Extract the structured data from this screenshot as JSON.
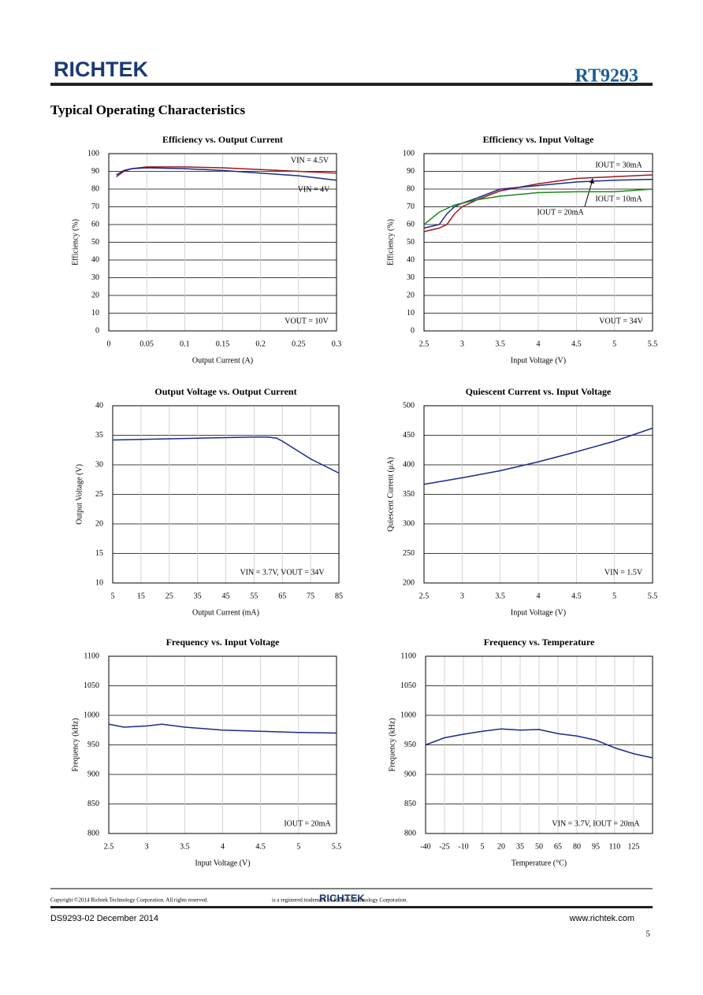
{
  "header": {
    "logo": "RICHTEK",
    "part": "RT9293",
    "section": "Typical Operating Characteristics"
  },
  "chart_data": [
    {
      "type": "line",
      "title": "Efficiency vs. Output Current",
      "x_label": "Output Current (A)",
      "y_label": "Efficiency (%)",
      "x": [
        0.01,
        0.02,
        0.03,
        0.05,
        0.1,
        0.15,
        0.2,
        0.25,
        0.3
      ],
      "series": [
        {
          "name": "VIN = 4.5V",
          "color": "#a01818",
          "values": [
            87,
            90,
            91.5,
            92.5,
            92.5,
            92,
            91,
            90,
            89
          ]
        },
        {
          "name": "VIN = 4V",
          "color": "#1a2a8c",
          "values": [
            88,
            90.5,
            91.5,
            92,
            91.5,
            90.5,
            89,
            87.5,
            85
          ]
        }
      ],
      "annotation": "VOUT = 10V",
      "xlim": [
        0,
        0.3
      ],
      "xticks": [
        0,
        0.05,
        0.1,
        0.15,
        0.2,
        0.25,
        0.3
      ],
      "ylim": [
        0,
        100
      ],
      "yticks": [
        0,
        10,
        20,
        30,
        40,
        50,
        60,
        70,
        80,
        90,
        100
      ],
      "grid": true
    },
    {
      "type": "line",
      "title": "Efficiency vs. Input Voltage",
      "x_label": "Input Voltage (V)",
      "y_label": "Efficiency (%)",
      "x": [
        2.5,
        2.7,
        2.8,
        2.9,
        3.0,
        3.2,
        3.5,
        4,
        4.5,
        5,
        5.5
      ],
      "series": [
        {
          "name": "IOUT = 30mA",
          "color": "#a01818",
          "values": [
            56,
            58,
            60,
            66,
            70,
            74,
            79,
            83,
            86,
            87,
            88
          ]
        },
        {
          "name": "IOUT = 10mA",
          "color": "#1a2a8c",
          "values": [
            58,
            60,
            66,
            70,
            72,
            75,
            80,
            82,
            84,
            85,
            85.5
          ]
        },
        {
          "name": "IOUT = 20mA",
          "color": "#1a8a1a",
          "values": [
            60,
            67,
            69,
            71,
            72,
            74,
            76,
            78,
            78.5,
            78.5,
            80
          ]
        }
      ],
      "annotation": "VOUT = 34V",
      "xlim": [
        2.5,
        5.5
      ],
      "xticks": [
        2.5,
        3,
        3.5,
        4,
        4.5,
        5,
        5.5
      ],
      "ylim": [
        0,
        100
      ],
      "yticks": [
        0,
        10,
        20,
        30,
        40,
        50,
        60,
        70,
        80,
        90,
        100
      ],
      "grid": true
    },
    {
      "type": "line",
      "title": "Output Voltage vs. Output Current",
      "x_label": "Output Current (mA)",
      "y_label": "Output Voltage (V)",
      "x": [
        5,
        15,
        25,
        35,
        45,
        55,
        60,
        63,
        65,
        70,
        75,
        80,
        85
      ],
      "values": [
        34.2,
        34.3,
        34.4,
        34.5,
        34.6,
        34.7,
        34.7,
        34.5,
        34,
        32.5,
        31,
        29.8,
        28.6
      ],
      "color": "#1a2a8c",
      "annotation": "VIN = 3.7V, VOUT = 34V",
      "xlim": [
        5,
        85
      ],
      "xticks": [
        5,
        15,
        25,
        35,
        45,
        55,
        65,
        75,
        85
      ],
      "ylim": [
        10,
        40
      ],
      "yticks": [
        10,
        15,
        20,
        25,
        30,
        35,
        40
      ],
      "grid": true
    },
    {
      "type": "line",
      "title": "Quiescent Current vs. Input Voltage",
      "x_label": "Input Voltage (V)",
      "y_label": "Quiescent Current (μA)",
      "x": [
        2.5,
        3,
        3.5,
        4,
        4.5,
        5,
        5.5
      ],
      "values": [
        367,
        378,
        390,
        405,
        422,
        440,
        462
      ],
      "color": "#1a2a8c",
      "annotation": "VIN = 1.5V",
      "xlim": [
        2.5,
        5.5
      ],
      "xticks": [
        2.5,
        3,
        3.5,
        4,
        4.5,
        5,
        5.5
      ],
      "ylim": [
        200,
        500
      ],
      "yticks": [
        200,
        250,
        300,
        350,
        400,
        450,
        500
      ],
      "grid": true
    },
    {
      "type": "line",
      "title": "Frequency vs. Input Voltage",
      "x_label": "Input Voltage (V)",
      "y_label": "Frequency (kHz)",
      "x": [
        2.5,
        2.7,
        3,
        3.2,
        3.5,
        4,
        4.5,
        5,
        5.5
      ],
      "values": [
        985,
        980,
        982,
        985,
        980,
        975,
        973,
        971,
        970
      ],
      "color": "#1a2a8c",
      "annotation": "IOUT = 20mA",
      "xlim": [
        2.5,
        5.5
      ],
      "xticks": [
        2.5,
        3,
        3.5,
        4,
        4.5,
        5,
        5.5
      ],
      "ylim": [
        800,
        1100
      ],
      "yticks": [
        800,
        850,
        900,
        950,
        1000,
        1050,
        1100
      ],
      "grid": true
    },
    {
      "type": "line",
      "title": "Frequency vs. Temperature",
      "x_label": "Temperature (°C)",
      "y_label": "Frequency (kHz)",
      "x": [
        -40,
        -25,
        -10,
        5,
        20,
        35,
        50,
        65,
        80,
        95,
        110,
        125,
        140
      ],
      "values": [
        950,
        962,
        968,
        973,
        977,
        975,
        976,
        969,
        965,
        958,
        945,
        935,
        928
      ],
      "color": "#1a2a8c",
      "annotation": "VIN = 3.7V, IOUT = 20mA",
      "xlim": [
        -40,
        140
      ],
      "xticks": [
        -40,
        -25,
        -10,
        5,
        20,
        35,
        50,
        65,
        80,
        95,
        110,
        125
      ],
      "ylim": [
        800,
        1100
      ],
      "yticks": [
        800,
        850,
        900,
        950,
        1000,
        1050,
        1100
      ],
      "grid": true
    }
  ],
  "footer": {
    "copyright": "Copyright ©2014 Richtek Technology Corporation. All rights reserved.",
    "logo": "RICHTEK",
    "trademark": "is a registered trademark of Richtek Technology Corporation.",
    "doc": "DS9293-02   December  2014",
    "url": "www.richtek.com",
    "page": "5"
  }
}
